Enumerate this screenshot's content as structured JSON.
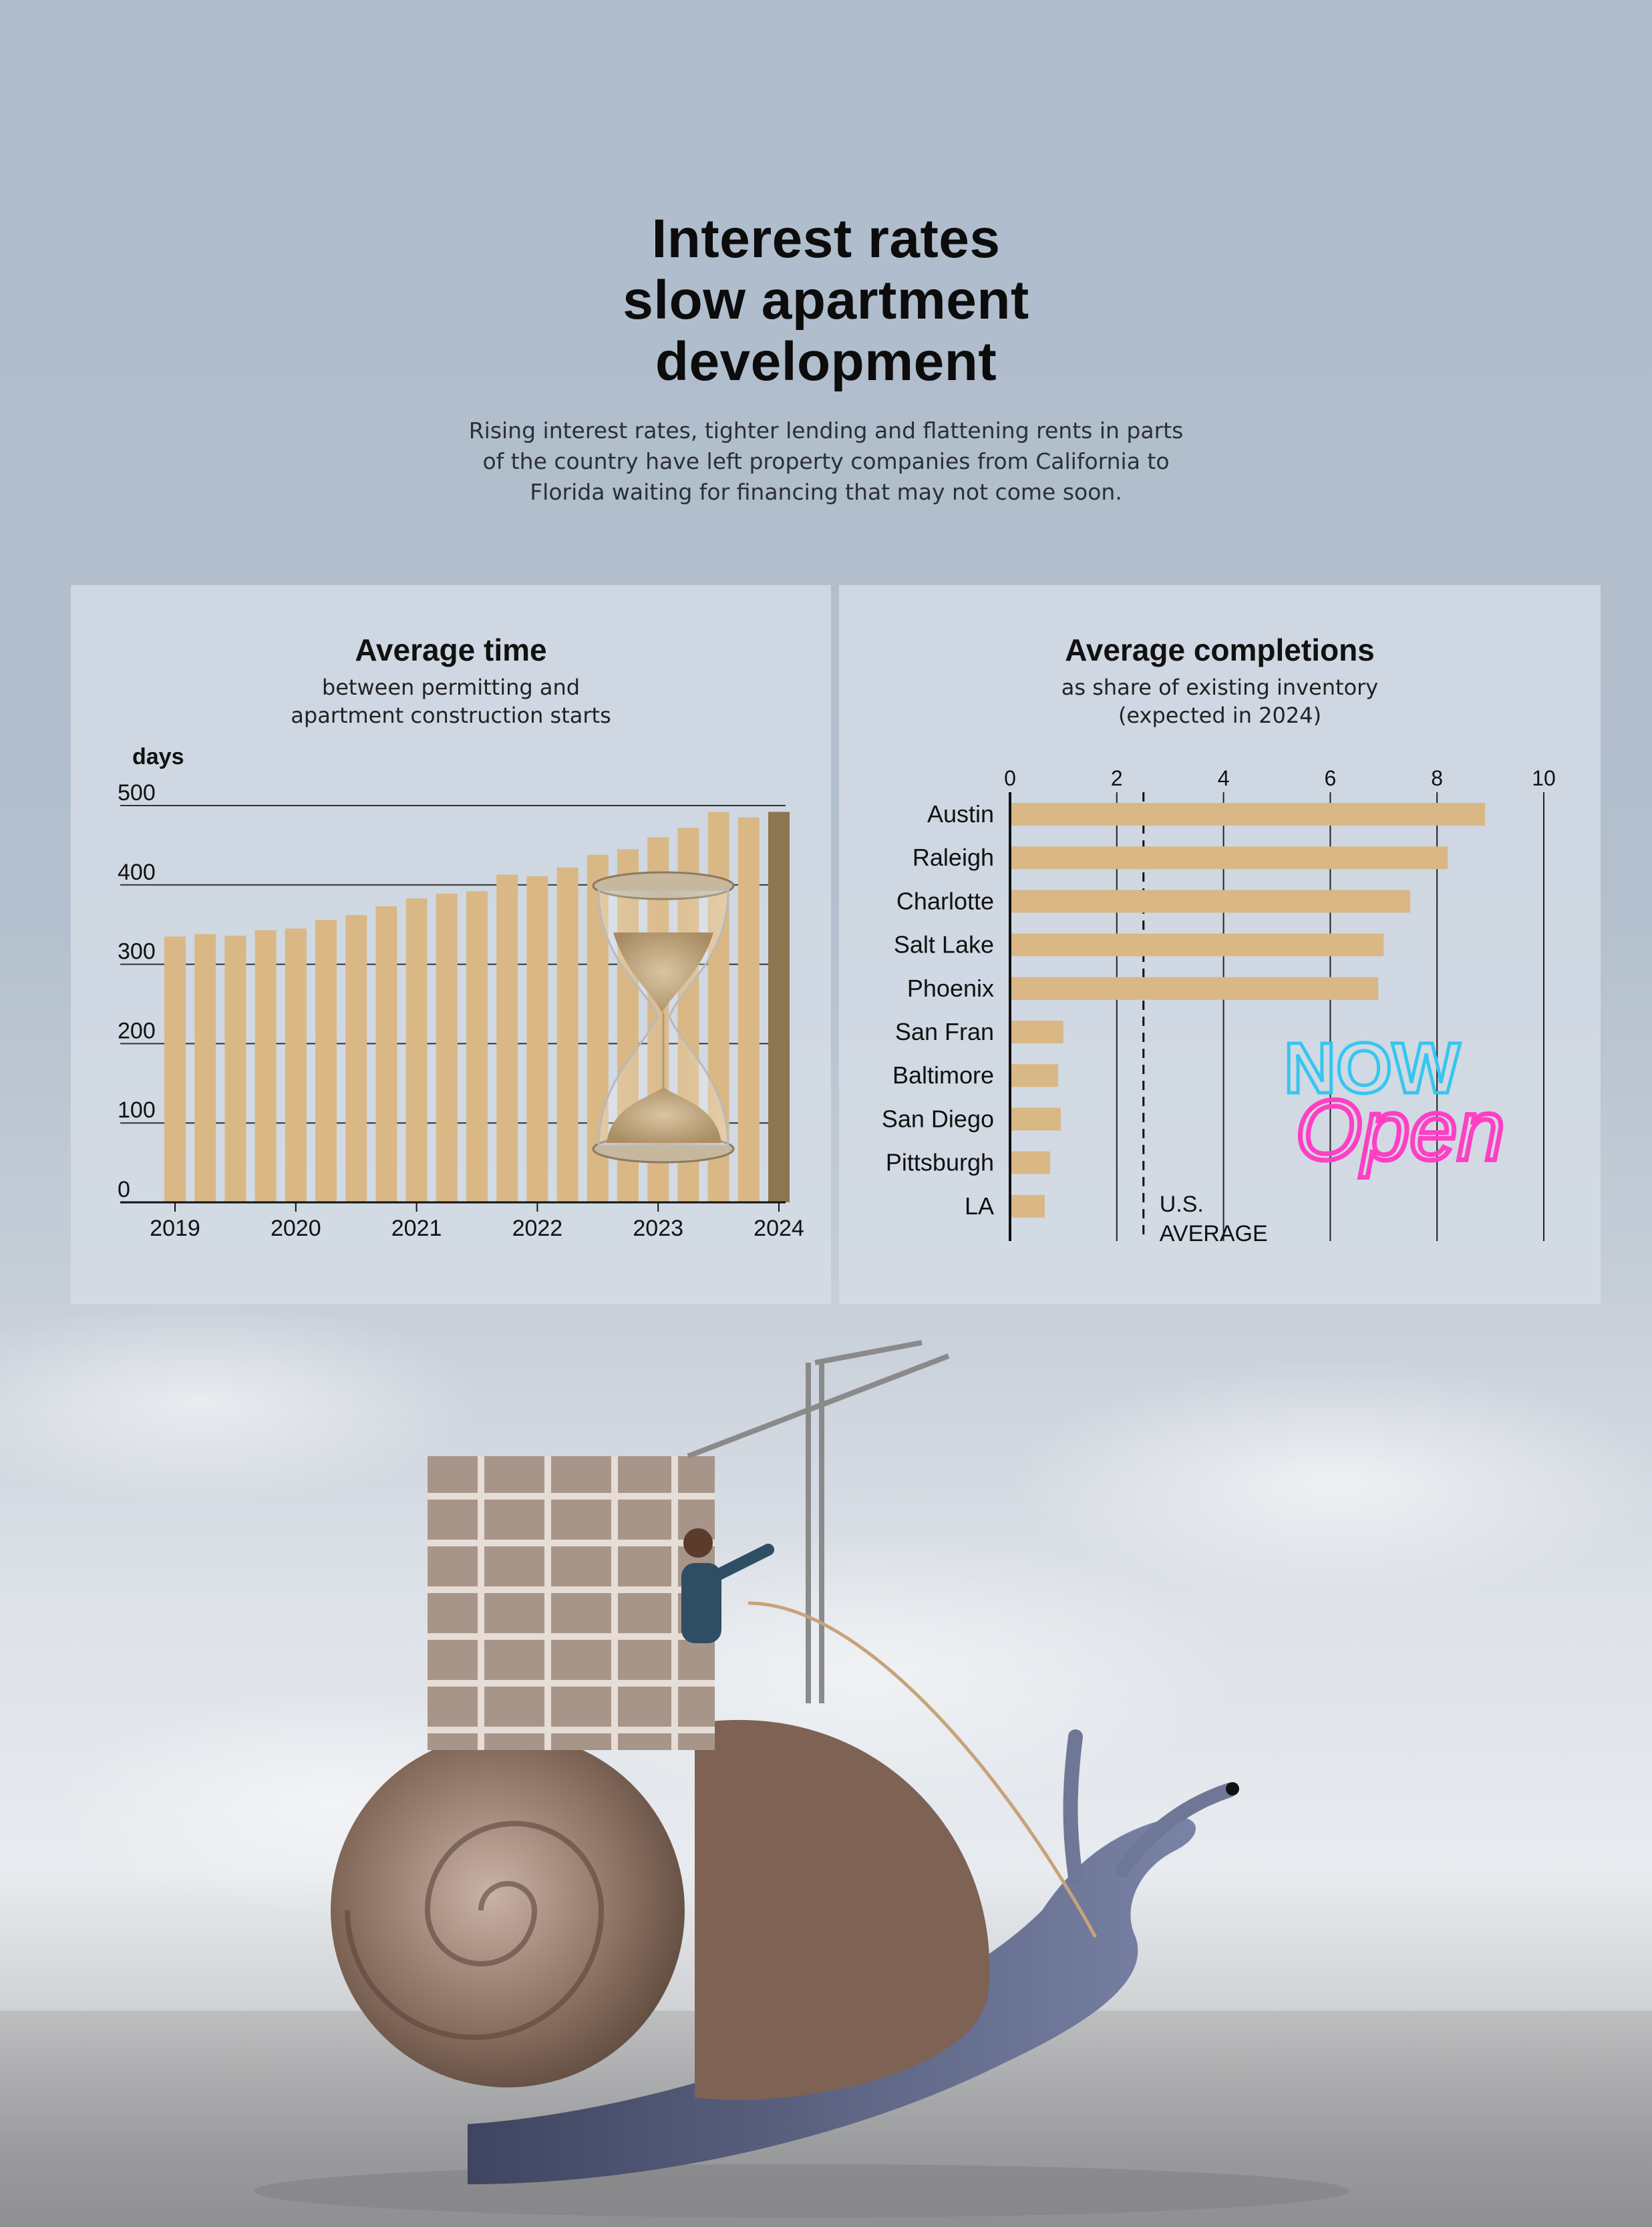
{
  "header": {
    "title_lines": [
      "Interest rates",
      "slow apartment",
      "development"
    ],
    "subtitle_lines": [
      "Rising interest rates, tighter lending and flattening rents in parts",
      "of the country have left property companies from California to",
      "Florida waiting for financing that may not come soon."
    ]
  },
  "left_panel": {
    "title": "Average time",
    "subtitle_lines": [
      "between permitting and",
      "apartment construction starts"
    ]
  },
  "right_panel": {
    "title": "Average completions",
    "subtitle_lines": [
      "as share of existing inventory",
      "(expected in 2024)"
    ]
  },
  "sign": {
    "line1": "NOW",
    "line2": "Open"
  },
  "chart_data": [
    {
      "type": "bar",
      "orientation": "vertical",
      "ylabel": "days",
      "ylim": [
        0,
        500
      ],
      "yticks": [
        0,
        100,
        200,
        300,
        400,
        500
      ],
      "x_tick_labels": [
        "2019",
        "2020",
        "2021",
        "2022",
        "2023",
        "2024"
      ],
      "values": [
        335,
        338,
        336,
        343,
        345,
        356,
        362,
        373,
        383,
        389,
        392,
        413,
        411,
        422,
        438,
        445,
        460,
        472,
        492,
        485,
        492
      ],
      "bar_color": "#d9b886",
      "last_bar_color": "#8c7551",
      "grid": true
    },
    {
      "type": "bar",
      "orientation": "horizontal",
      "categories": [
        "Austin",
        "Raleigh",
        "Charlotte",
        "Salt Lake",
        "Phoenix",
        "San Fran",
        "Baltimore",
        "San Diego",
        "Pittsburgh",
        "LA"
      ],
      "values": [
        8.9,
        8.2,
        7.5,
        7.0,
        6.9,
        1.0,
        0.9,
        0.95,
        0.75,
        0.65
      ],
      "xlim": [
        0,
        10
      ],
      "xticks": [
        0,
        2,
        4,
        6,
        8,
        10
      ],
      "reference_line": {
        "value": 2.5,
        "label_lines": [
          "U.S.",
          "AVERAGE"
        ]
      },
      "bar_color": "#d9b886",
      "grid": true
    }
  ]
}
